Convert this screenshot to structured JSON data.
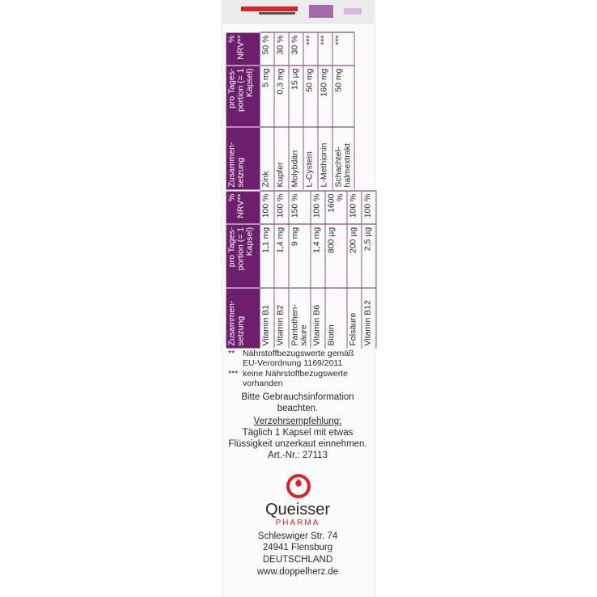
{
  "table1": {
    "headers": [
      "Zusammen-setzung",
      "pro Tages-portion (= 1 Kapsel)",
      "% NRV**"
    ],
    "rows": [
      [
        "Zink",
        "5 mg",
        "50 %"
      ],
      [
        "Kupfer",
        "0,3 mg",
        "30 %"
      ],
      [
        "Molybdän",
        "15 µg",
        "30 %"
      ],
      [
        "L-Cystein",
        "50 mg",
        "***"
      ],
      [
        "L-Methionin",
        "160 mg",
        "***"
      ],
      [
        "Schachtel-halmextrakt",
        "50 mg",
        "***"
      ]
    ]
  },
  "table2": {
    "headers": [
      "Zusammen-setzung",
      "pro Tages-portion (= 1 Kapsel)",
      "% NRV**"
    ],
    "rows": [
      [
        "Vitamin B1",
        "1,1 mg",
        "100 %"
      ],
      [
        "Vitamin B2",
        "1,4 mg",
        "100 %"
      ],
      [
        "Pantothen-säure",
        "9 mg",
        "150 %"
      ],
      [
        "Vitamin B6",
        "1,4 mg",
        "100 %"
      ],
      [
        "Biotin",
        "800 µg",
        "1600 %"
      ],
      [
        "Folsäure",
        "200 µg",
        "100 %"
      ],
      [
        "Vitamin B12",
        "2,5 µg",
        "100 %"
      ]
    ]
  },
  "footnotes": [
    {
      "mark": "**",
      "lines": [
        "Nährstoffbezugswerte gemäß",
        "EU-Verordnung 1169/2011"
      ]
    },
    {
      "mark": "***",
      "lines": [
        "keine Nährstoffbezugswerte",
        "vorhanden"
      ]
    }
  ],
  "info": {
    "line1": "Bitte Gebrauchsinformation",
    "line2": "beachten.",
    "heading": "Verzehrsempfehlung:",
    "line3": "Täglich 1 Kapsel mit etwas",
    "line4": "Flüssigkeit unzerkaut einnehmen.",
    "art": "Art.-Nr.: 27113"
  },
  "brand": {
    "name": "Queisser",
    "sub": "PHARMA",
    "color": "#d8232a",
    "address": [
      "Schleswiger Str. 74",
      "24941 Flensburg",
      "DEUTSCHLAND",
      "www.doppelherz.de"
    ]
  },
  "colors": {
    "table_header": "#6d1f6e"
  }
}
